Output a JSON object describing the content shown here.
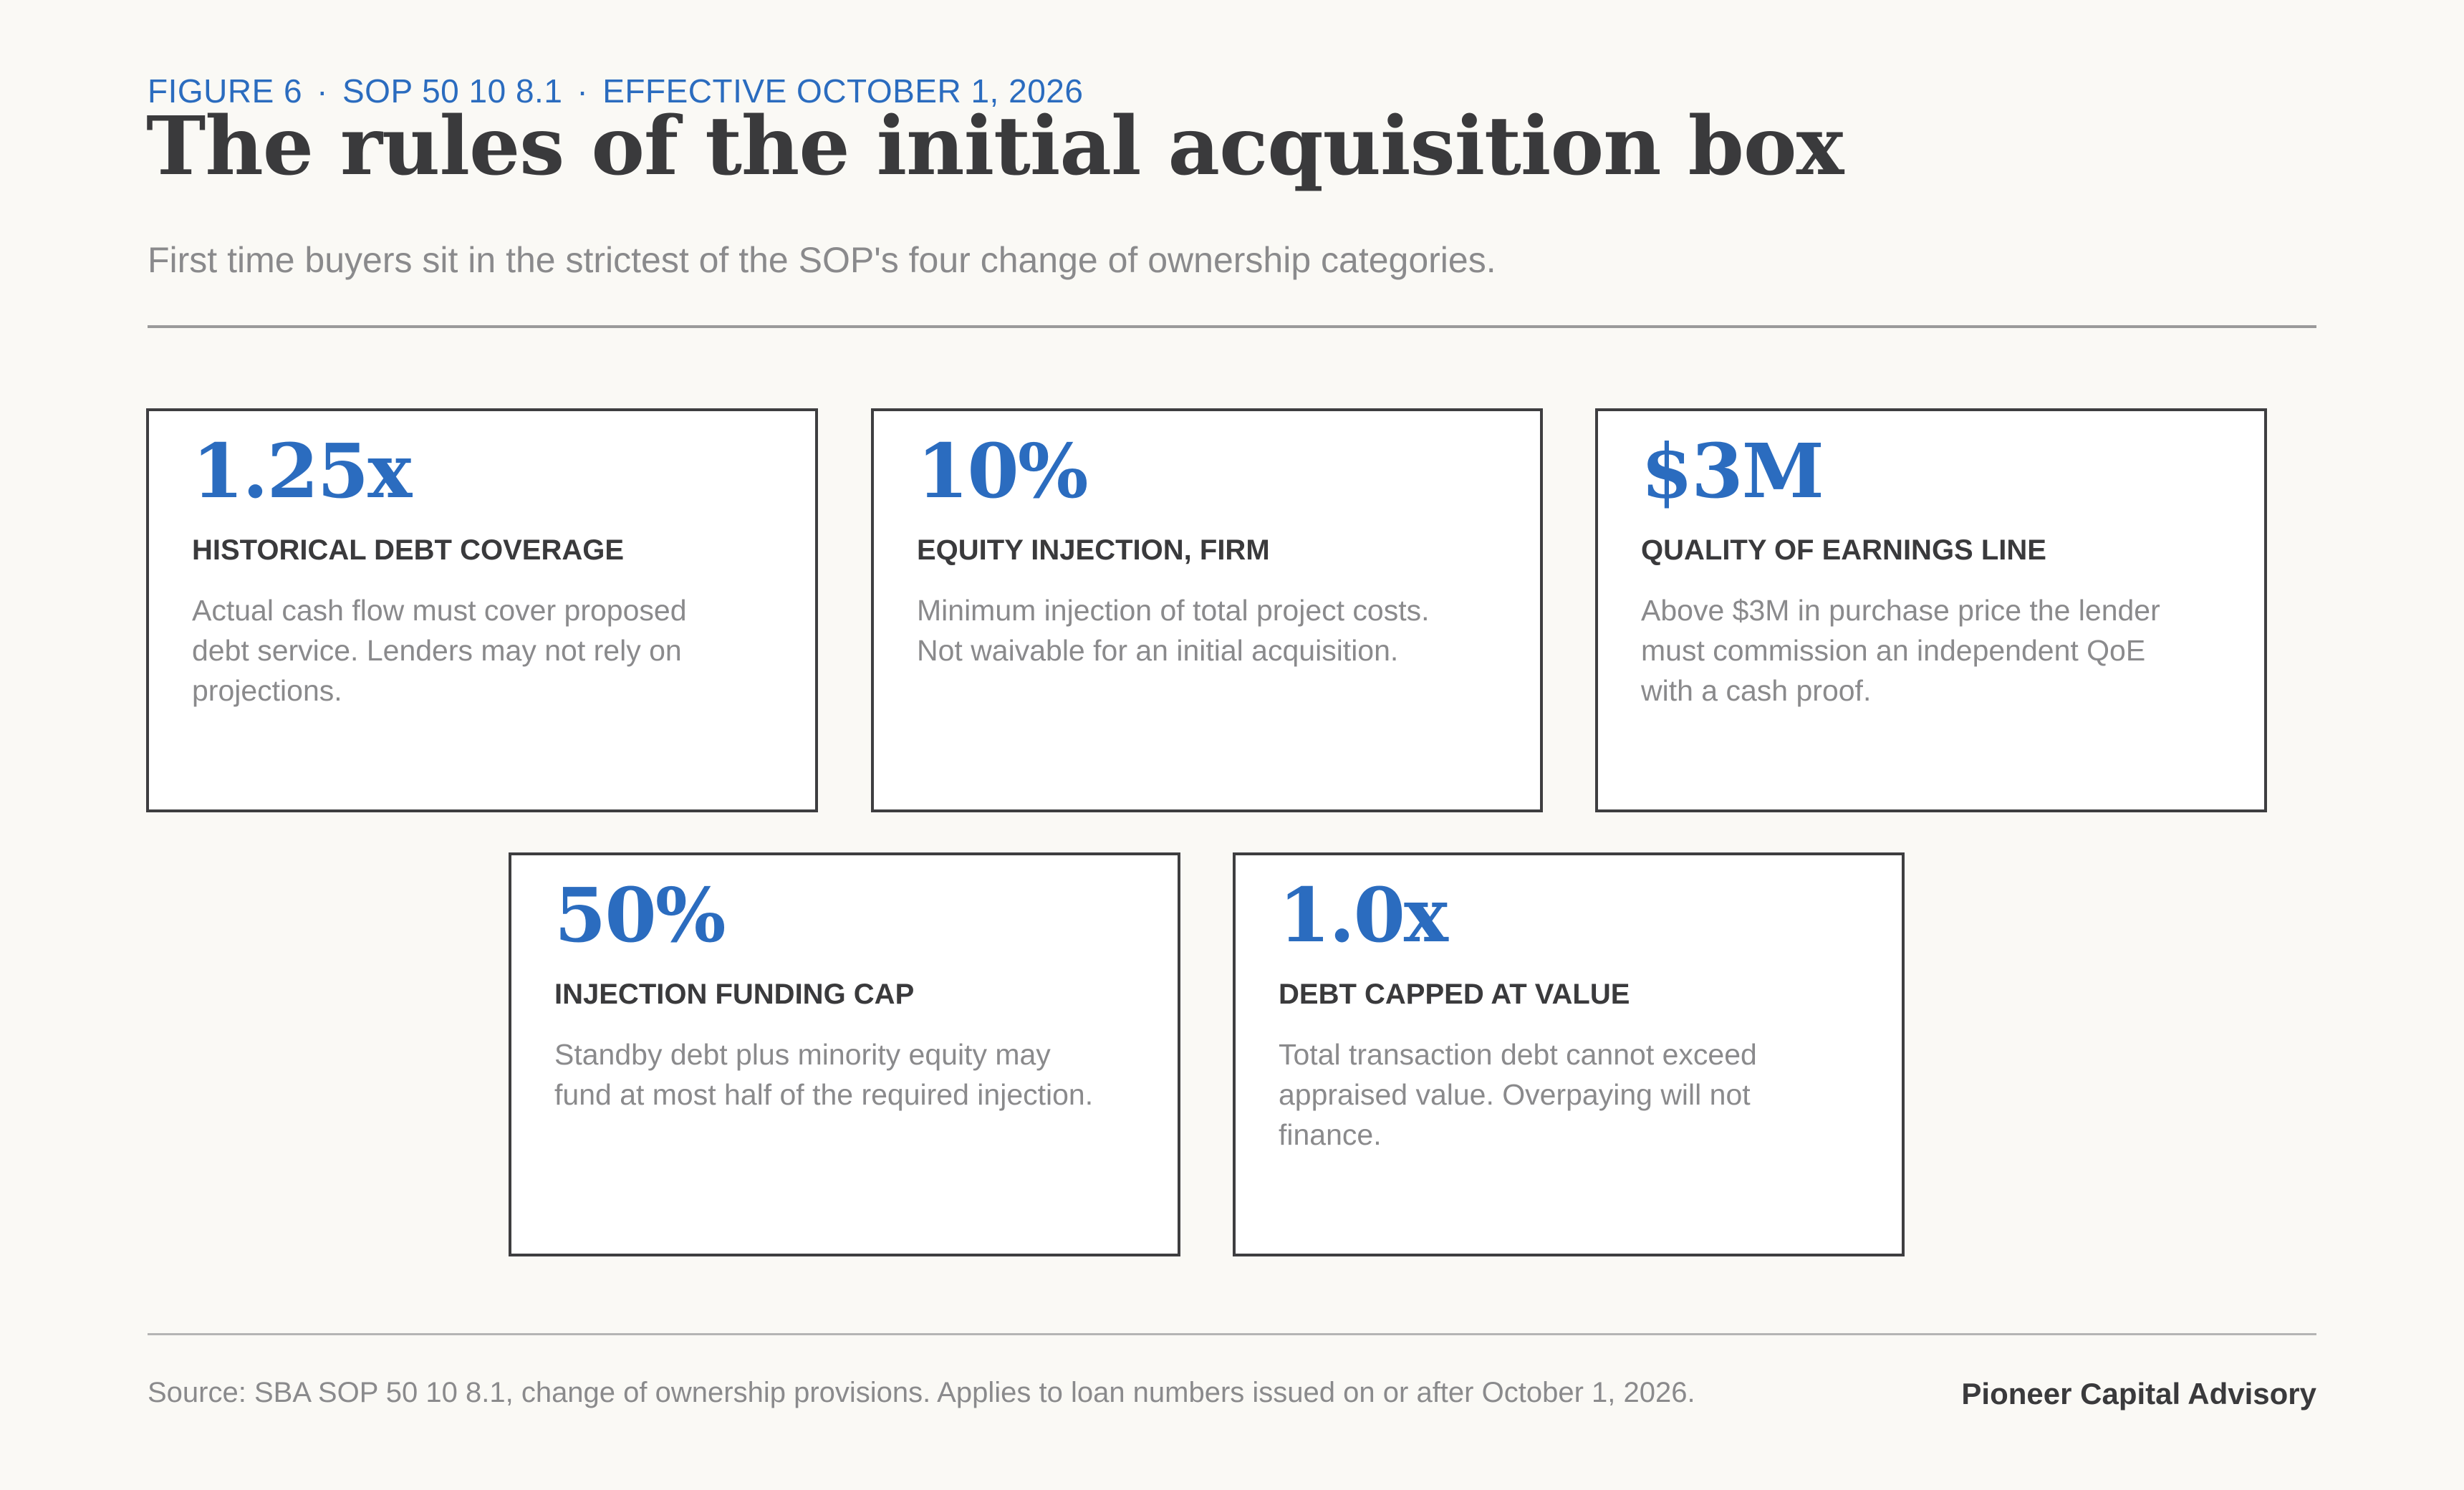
{
  "header": {
    "figure": "FIGURE 6",
    "sop": "SOP 50 10 8.1",
    "effective": "EFFECTIVE OCTOBER 1, 2026",
    "separator": "·",
    "title": "The rules of the initial acquisition box",
    "subtitle": "First time buyers sit in the strictest of the SOP's four change of ownership categories."
  },
  "cards": [
    {
      "value": "1.25x",
      "heading": "HISTORICAL DEBT COVERAGE",
      "description": "Actual cash flow must cover proposed debt service. Lenders may not rely on projections."
    },
    {
      "value": "10%",
      "heading": "EQUITY INJECTION, FIRM",
      "description": "Minimum injection of total project costs. Not waivable for an initial acquisition."
    },
    {
      "value": "$3M",
      "heading": "QUALITY OF EARNINGS LINE",
      "description": "Above $3M in purchase price the lender must commission an independent QoE with a cash proof."
    },
    {
      "value": "50%",
      "heading": "INJECTION FUNDING CAP",
      "description": "Standby debt plus minority equity may fund at most half of the required injection."
    },
    {
      "value": "1.0x",
      "heading": "DEBT CAPPED AT VALUE",
      "description": "Total transaction debt cannot exceed appraised value. Overpaying will not finance."
    }
  ],
  "footer": {
    "source": "Source: SBA SOP 50 10 8.1, change of ownership provisions. Applies to loan numbers issued on or after October 1, 2026.",
    "brand": "Pioneer Capital Advisory"
  },
  "colors": {
    "accent": "#2b6cbf",
    "text_dark": "#3a3a3c",
    "text_muted": "#8a8a8c",
    "background": "#faf9f5",
    "card_border": "#3e3e40"
  }
}
